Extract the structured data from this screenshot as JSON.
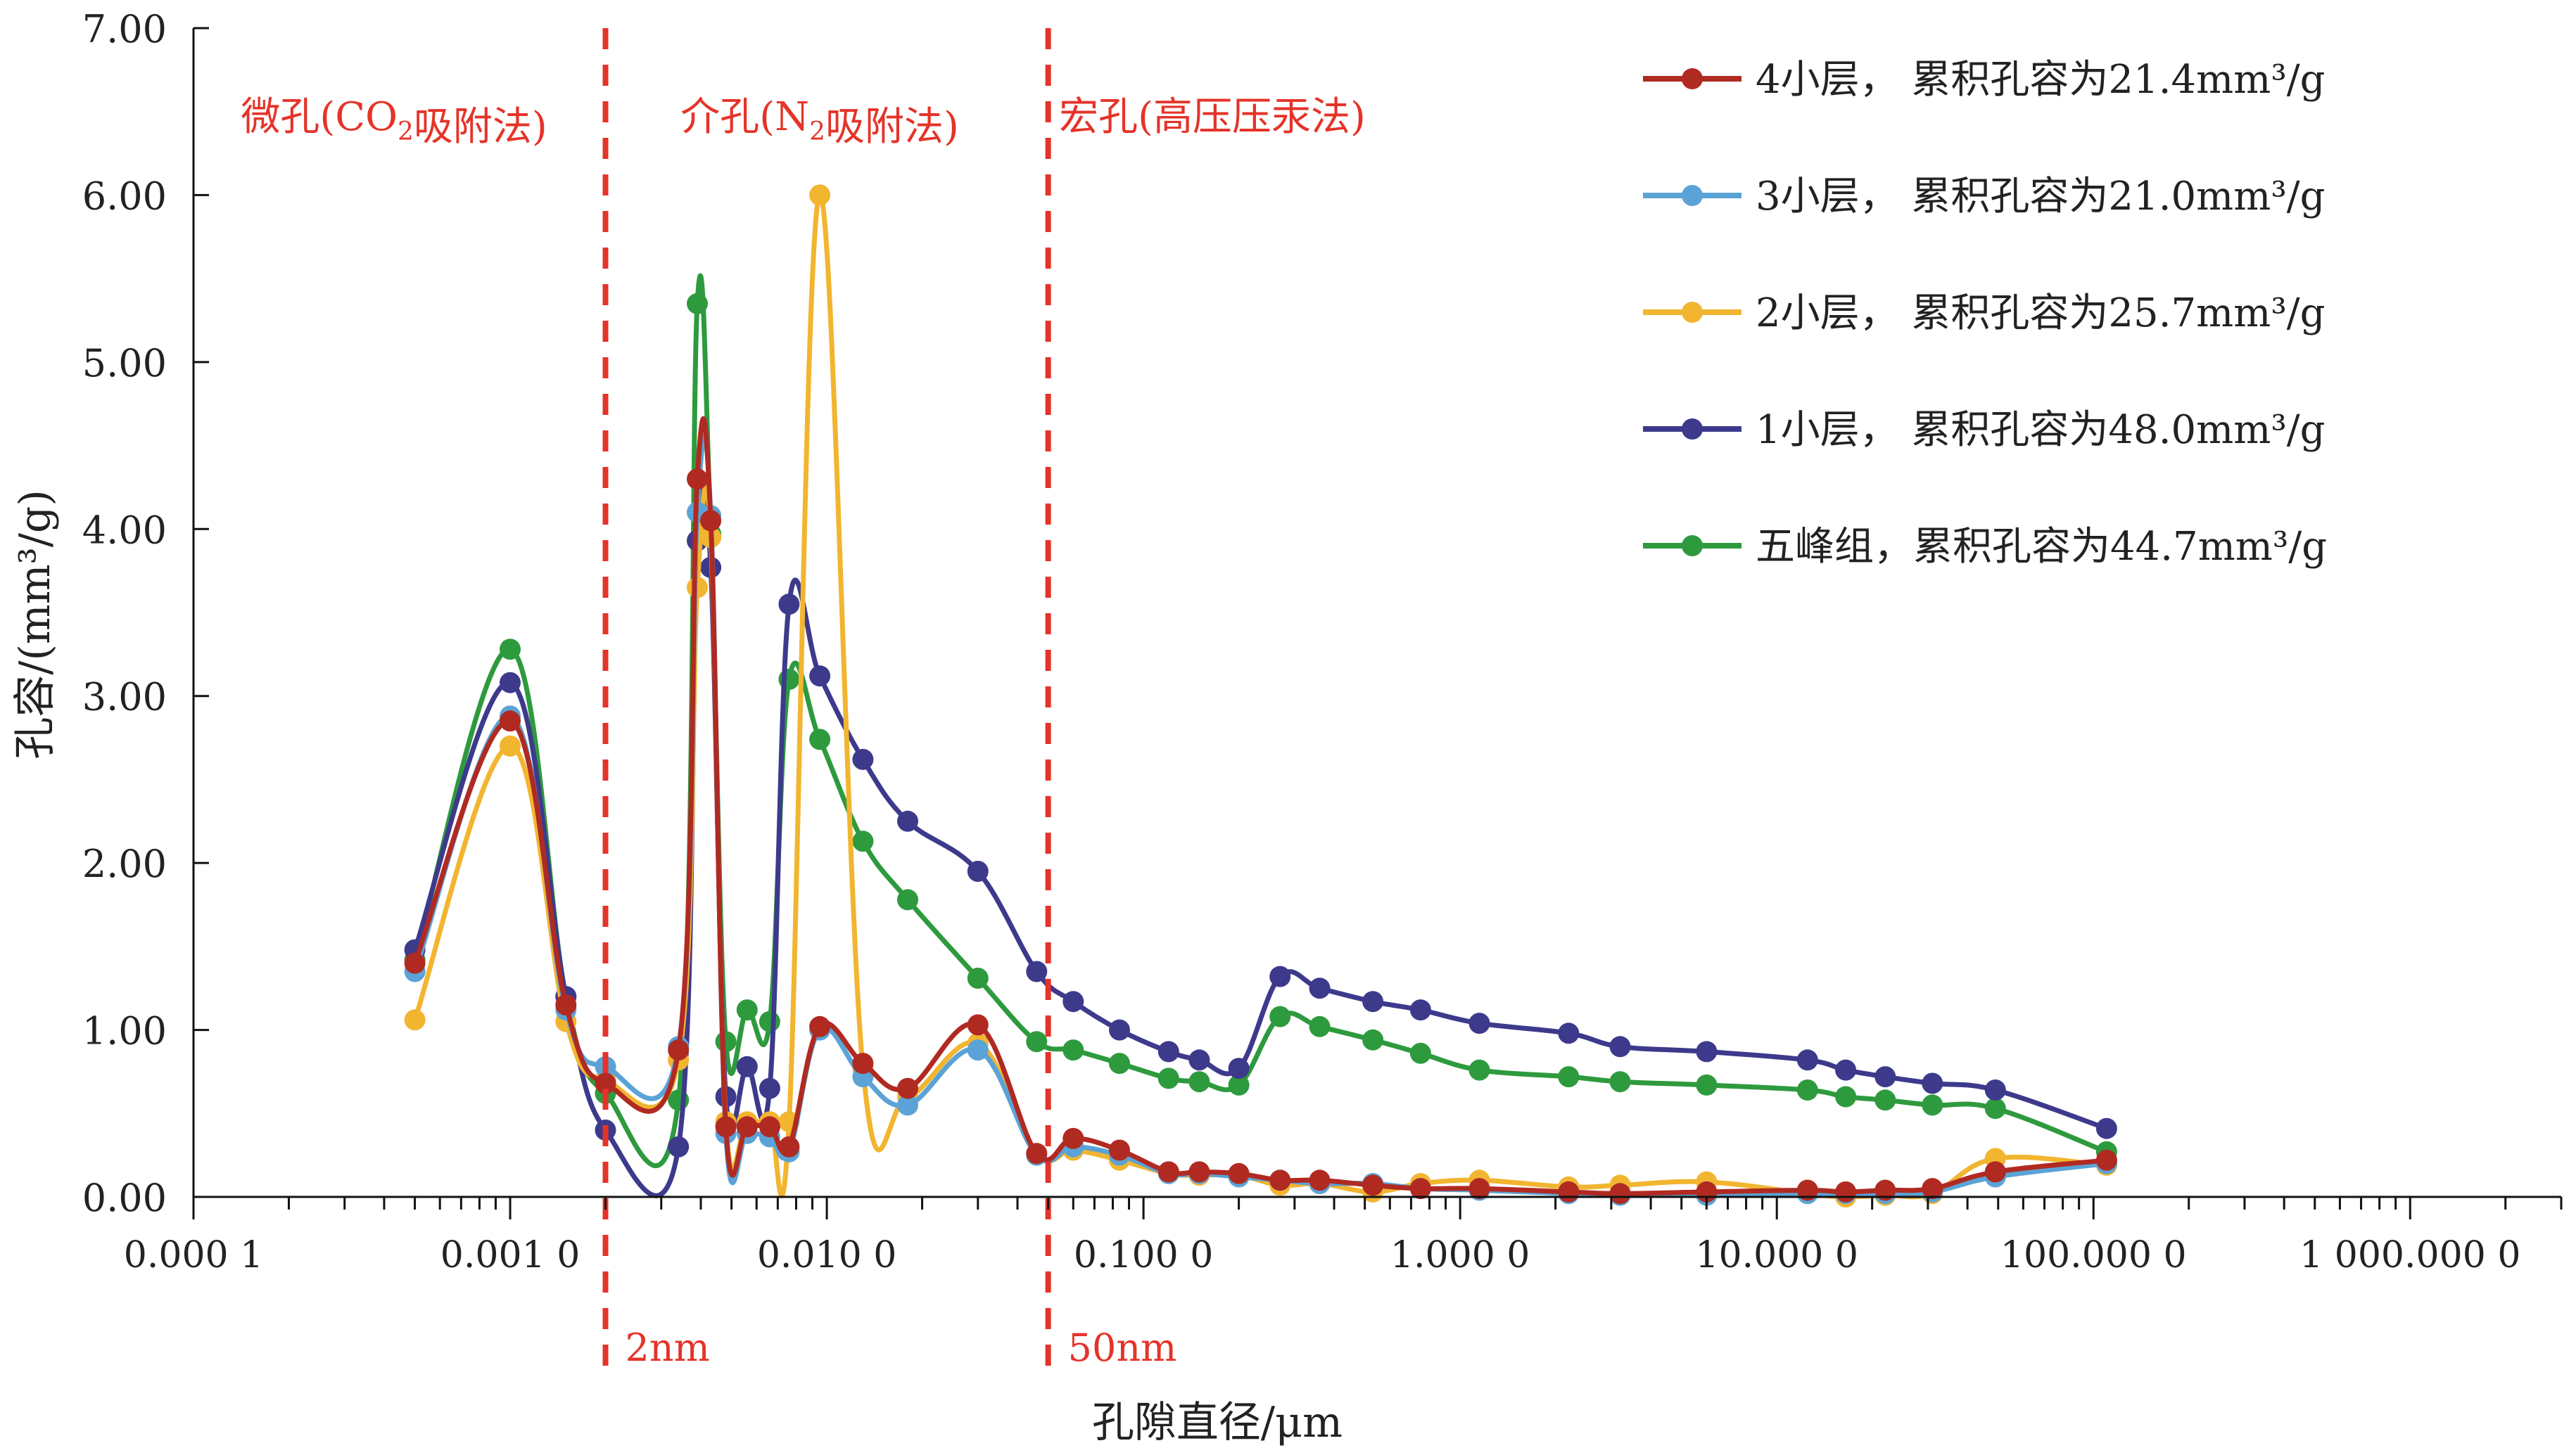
{
  "chart_data": {
    "type": "line",
    "title": "",
    "xlabel": "孔隙直径/μm",
    "ylabel": "孔容/(mm³/g)",
    "x_scale": "log",
    "xlim": [
      0.0001,
      3000
    ],
    "ylim": [
      0,
      7
    ],
    "x_ticks": [
      0.0001,
      0.001,
      0.01,
      0.1,
      1,
      10,
      100,
      1000
    ],
    "x_tick_labels": [
      "0.000 1",
      "0.001 0",
      "0.010 0",
      "0.100 0",
      "1.000 0",
      "10.000 0",
      "100.000 0",
      "1 000.000 0"
    ],
    "y_ticks": [
      0,
      1,
      2,
      3,
      4,
      5,
      6,
      7
    ],
    "y_tick_labels": [
      "0.00",
      "1.00",
      "2.00",
      "3.00",
      "4.00",
      "5.00",
      "6.00",
      "7.00"
    ],
    "grid": false,
    "legend_position": "top-right",
    "dividers": [
      {
        "x": 0.002,
        "color": "#e53329",
        "label": "2nm"
      },
      {
        "x": 0.05,
        "color": "#e53329",
        "label": "50nm"
      }
    ],
    "region_labels": [
      {
        "parts": [
          {
            "t": "微孔(CO"
          },
          {
            "t": "2",
            "sub": true
          },
          {
            "t": "吸附法)"
          }
        ],
        "x": 0.00043,
        "color": "#e53329"
      },
      {
        "parts": [
          {
            "t": "介孔(N"
          },
          {
            "t": "2",
            "sub": true
          },
          {
            "t": "吸附法)"
          }
        ],
        "x": 0.0095,
        "color": "#e53329"
      },
      {
        "parts": [
          {
            "t": "宏孔(高压压汞法)"
          }
        ],
        "x": 0.165,
        "color": "#e53329"
      }
    ],
    "series": [
      {
        "name": "4小层， 累积孔容为21.4mm³/g",
        "color": "#b02a22",
        "points": [
          [
            0.0005,
            1.4
          ],
          [
            0.001,
            2.85
          ],
          [
            0.0015,
            1.15
          ],
          [
            0.002,
            0.68
          ],
          [
            0.0034,
            0.88
          ],
          [
            0.0039,
            4.3
          ],
          [
            0.0043,
            4.05
          ],
          [
            0.0048,
            0.42
          ],
          [
            0.0056,
            0.42
          ],
          [
            0.0066,
            0.42
          ],
          [
            0.0076,
            0.3
          ],
          [
            0.0095,
            1.02
          ],
          [
            0.013,
            0.8
          ],
          [
            0.018,
            0.65
          ],
          [
            0.03,
            1.03
          ],
          [
            0.046,
            0.26
          ],
          [
            0.06,
            0.35
          ],
          [
            0.084,
            0.28
          ],
          [
            0.12,
            0.15
          ],
          [
            0.15,
            0.15
          ],
          [
            0.2,
            0.14
          ],
          [
            0.27,
            0.1
          ],
          [
            0.36,
            0.1
          ],
          [
            0.53,
            0.07
          ],
          [
            0.75,
            0.05
          ],
          [
            1.15,
            0.05
          ],
          [
            2.2,
            0.03
          ],
          [
            3.2,
            0.02
          ],
          [
            6.0,
            0.03
          ],
          [
            12.5,
            0.04
          ],
          [
            16.5,
            0.03
          ],
          [
            22.0,
            0.04
          ],
          [
            31.0,
            0.05
          ],
          [
            49.0,
            0.15
          ],
          [
            110.0,
            0.22
          ]
        ]
      },
      {
        "name": "3小层， 累积孔容为21.0mm³/g",
        "color": "#5ba3d6",
        "points": [
          [
            0.0005,
            1.35
          ],
          [
            0.001,
            2.88
          ],
          [
            0.0015,
            1.12
          ],
          [
            0.002,
            0.78
          ],
          [
            0.0034,
            0.9
          ],
          [
            0.0039,
            4.1
          ],
          [
            0.0043,
            4.08
          ],
          [
            0.0048,
            0.38
          ],
          [
            0.0056,
            0.38
          ],
          [
            0.0066,
            0.36
          ],
          [
            0.0076,
            0.27
          ],
          [
            0.0095,
            1.0
          ],
          [
            0.013,
            0.72
          ],
          [
            0.018,
            0.55
          ],
          [
            0.03,
            0.88
          ],
          [
            0.046,
            0.25
          ],
          [
            0.06,
            0.3
          ],
          [
            0.084,
            0.25
          ],
          [
            0.12,
            0.14
          ],
          [
            0.15,
            0.14
          ],
          [
            0.2,
            0.12
          ],
          [
            0.27,
            0.1
          ],
          [
            0.36,
            0.08
          ],
          [
            0.53,
            0.08
          ],
          [
            0.75,
            0.05
          ],
          [
            1.15,
            0.04
          ],
          [
            2.2,
            0.02
          ],
          [
            3.2,
            0.01
          ],
          [
            6.0,
            0.01
          ],
          [
            12.5,
            0.02
          ],
          [
            16.5,
            0.02
          ],
          [
            22.0,
            0.02
          ],
          [
            31.0,
            0.03
          ],
          [
            49.0,
            0.12
          ],
          [
            110.0,
            0.2
          ]
        ]
      },
      {
        "name": "2小层， 累积孔容为25.7mm³/g",
        "color": "#f2b530",
        "points": [
          [
            0.0005,
            1.06
          ],
          [
            0.001,
            2.7
          ],
          [
            0.0015,
            1.05
          ],
          [
            0.002,
            0.7
          ],
          [
            0.0034,
            0.82
          ],
          [
            0.0039,
            3.65
          ],
          [
            0.0043,
            3.95
          ],
          [
            0.0048,
            0.45
          ],
          [
            0.0056,
            0.45
          ],
          [
            0.0066,
            0.45
          ],
          [
            0.0076,
            0.45
          ],
          [
            0.0095,
            6.0
          ],
          [
            0.013,
            0.77
          ],
          [
            0.018,
            0.6
          ],
          [
            0.03,
            0.92
          ],
          [
            0.046,
            0.26
          ],
          [
            0.06,
            0.28
          ],
          [
            0.084,
            0.22
          ],
          [
            0.12,
            0.14
          ],
          [
            0.15,
            0.13
          ],
          [
            0.2,
            0.13
          ],
          [
            0.27,
            0.07
          ],
          [
            0.36,
            0.08
          ],
          [
            0.53,
            0.03
          ],
          [
            0.75,
            0.08
          ],
          [
            1.15,
            0.1
          ],
          [
            2.2,
            0.06
          ],
          [
            3.2,
            0.07
          ],
          [
            6.0,
            0.09
          ],
          [
            12.5,
            0.02
          ],
          [
            16.5,
            0.0
          ],
          [
            22.0,
            0.01
          ],
          [
            31.0,
            0.02
          ],
          [
            49.0,
            0.23
          ],
          [
            110.0,
            0.19
          ]
        ]
      },
      {
        "name": "1小层， 累积孔容为48.0mm³/g",
        "color": "#3d3a8c",
        "points": [
          [
            0.0005,
            1.48
          ],
          [
            0.001,
            3.08
          ],
          [
            0.0015,
            1.2
          ],
          [
            0.002,
            0.4
          ],
          [
            0.0034,
            0.3
          ],
          [
            0.0039,
            3.93
          ],
          [
            0.0043,
            3.77
          ],
          [
            0.0048,
            0.6
          ],
          [
            0.0056,
            0.78
          ],
          [
            0.0066,
            0.65
          ],
          [
            0.0076,
            3.55
          ],
          [
            0.0095,
            3.12
          ],
          [
            0.013,
            2.62
          ],
          [
            0.018,
            2.25
          ],
          [
            0.03,
            1.95
          ],
          [
            0.046,
            1.35
          ],
          [
            0.06,
            1.17
          ],
          [
            0.084,
            1.0
          ],
          [
            0.12,
            0.87
          ],
          [
            0.15,
            0.82
          ],
          [
            0.2,
            0.77
          ],
          [
            0.27,
            1.32
          ],
          [
            0.36,
            1.25
          ],
          [
            0.53,
            1.17
          ],
          [
            0.75,
            1.12
          ],
          [
            1.15,
            1.04
          ],
          [
            2.2,
            0.98
          ],
          [
            3.2,
            0.9
          ],
          [
            6.0,
            0.87
          ],
          [
            12.5,
            0.82
          ],
          [
            16.5,
            0.76
          ],
          [
            22.0,
            0.72
          ],
          [
            31.0,
            0.68
          ],
          [
            49.0,
            0.64
          ],
          [
            110.0,
            0.41
          ]
        ]
      },
      {
        "name": "五峰组，累积孔容为44.7mm³/g",
        "color": "#2e9a3e",
        "points": [
          [
            0.0005,
            1.42
          ],
          [
            0.001,
            3.28
          ],
          [
            0.0015,
            1.2
          ],
          [
            0.002,
            0.62
          ],
          [
            0.0034,
            0.58
          ],
          [
            0.0039,
            5.35
          ],
          [
            0.0043,
            3.97
          ],
          [
            0.0048,
            0.93
          ],
          [
            0.0056,
            1.12
          ],
          [
            0.0066,
            1.05
          ],
          [
            0.0076,
            3.1
          ],
          [
            0.0095,
            2.74
          ],
          [
            0.013,
            2.13
          ],
          [
            0.018,
            1.78
          ],
          [
            0.03,
            1.31
          ],
          [
            0.046,
            0.93
          ],
          [
            0.06,
            0.88
          ],
          [
            0.084,
            0.8
          ],
          [
            0.12,
            0.71
          ],
          [
            0.15,
            0.69
          ],
          [
            0.2,
            0.67
          ],
          [
            0.27,
            1.08
          ],
          [
            0.36,
            1.02
          ],
          [
            0.53,
            0.94
          ],
          [
            0.75,
            0.86
          ],
          [
            1.15,
            0.76
          ],
          [
            2.2,
            0.72
          ],
          [
            3.2,
            0.69
          ],
          [
            6.0,
            0.67
          ],
          [
            12.5,
            0.64
          ],
          [
            16.5,
            0.6
          ],
          [
            22.0,
            0.58
          ],
          [
            31.0,
            0.55
          ],
          [
            49.0,
            0.53
          ],
          [
            110.0,
            0.27
          ]
        ]
      }
    ]
  }
}
